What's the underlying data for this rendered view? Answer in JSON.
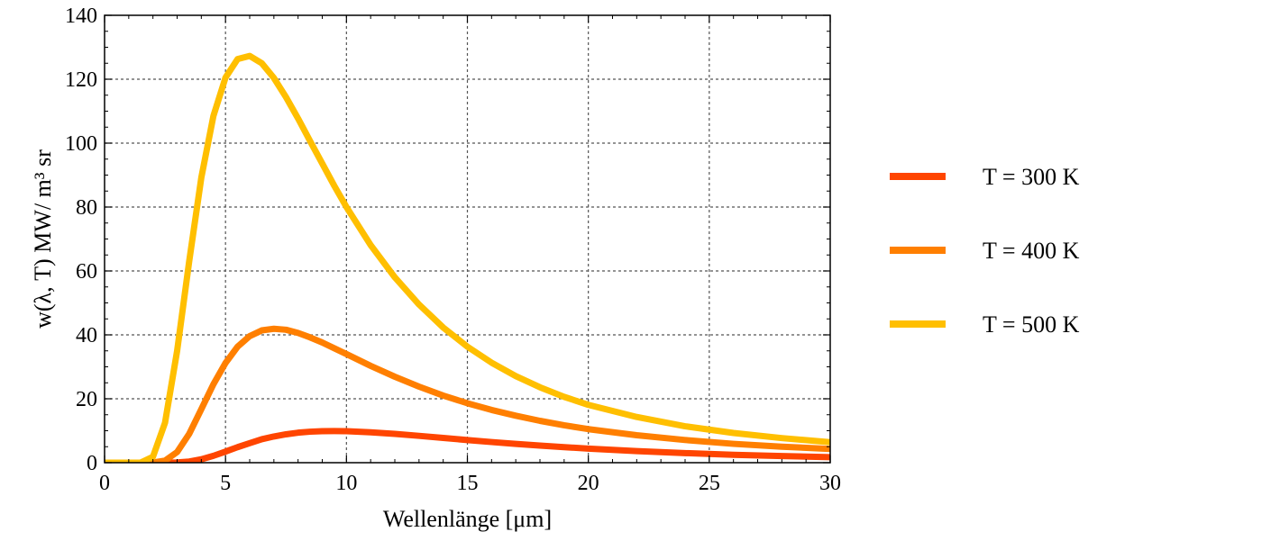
{
  "chart_data": {
    "type": "line",
    "title": "",
    "xlabel": "Wellenlänge [μm]",
    "ylabel": "w(λ, T) MW/ m³ sr",
    "xlim": [
      0,
      30
    ],
    "ylim": [
      0,
      140
    ],
    "xticks": [
      0,
      5,
      10,
      15,
      20,
      25,
      30
    ],
    "yticks": [
      0,
      20,
      40,
      60,
      80,
      100,
      120,
      140
    ],
    "grid": true,
    "grid_style": "dotted",
    "legend_position": "right",
    "x": [
      0.5,
      1,
      1.5,
      2,
      2.5,
      3,
      3.5,
      4,
      4.5,
      5,
      5.5,
      6,
      6.5,
      7,
      7.5,
      8,
      8.5,
      9,
      9.5,
      10,
      11,
      12,
      13,
      14,
      15,
      16,
      17,
      18,
      19,
      20,
      22,
      24,
      26,
      28,
      30
    ],
    "series": [
      {
        "name": "T = 300 K",
        "color": "#FF4500",
        "values": [
          0,
          0,
          0,
          0,
          0.01,
          0.08,
          0.37,
          1.06,
          2.15,
          3.48,
          4.86,
          6.1,
          7.35,
          8.2,
          8.88,
          9.39,
          9.7,
          9.87,
          9.9,
          9.85,
          9.52,
          9.0,
          8.4,
          7.74,
          7.08,
          6.46,
          5.89,
          5.36,
          4.86,
          4.41,
          3.63,
          3.0,
          2.48,
          2.07,
          1.73
        ]
      },
      {
        "name": "T = 400 K",
        "color": "#FF7F00",
        "values": [
          0,
          0,
          0,
          0.05,
          0.64,
          3.33,
          9.03,
          16.75,
          24.55,
          31.2,
          36.3,
          39.6,
          41.4,
          41.9,
          41.6,
          40.6,
          39.2,
          37.6,
          35.8,
          34.0,
          30.3,
          26.9,
          23.8,
          21.0,
          18.6,
          16.5,
          14.7,
          13.1,
          11.7,
          10.5,
          8.6,
          7.1,
          5.9,
          5.0,
          4.3
        ]
      },
      {
        "name": "T = 500 K",
        "color": "#FFBF00",
        "values": [
          0,
          0,
          0.05,
          1.84,
          12.5,
          35.0,
          63.1,
          89.2,
          108.5,
          120.5,
          126.3,
          127.3,
          125.0,
          120.4,
          114.4,
          107.7,
          100.6,
          93.6,
          86.6,
          80.0,
          68.1,
          58.0,
          49.5,
          42.3,
          36.3,
          31.3,
          27.1,
          23.6,
          20.6,
          18.1,
          14.3,
          11.4,
          9.3,
          7.7,
          6.4
        ]
      }
    ]
  }
}
